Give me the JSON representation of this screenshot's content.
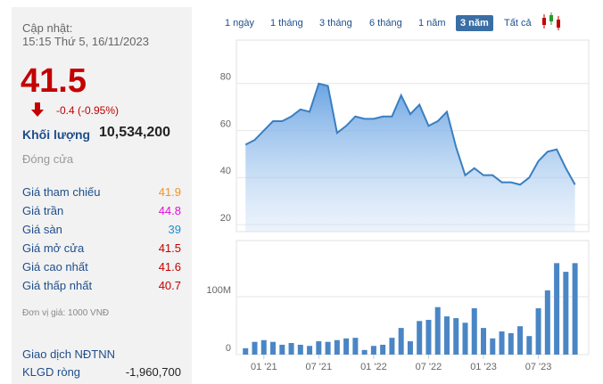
{
  "panel": {
    "updated_label": "Cập nhật:",
    "updated_time": "15:15 Thứ 5, 16/11/2023",
    "price": "41.5",
    "change": "-0.4 (-0.95%)",
    "volume_label": "Khối lượng",
    "volume": "10,534,200",
    "close_label": "Đóng cửa",
    "rows": [
      {
        "label": "Giá tham chiếu",
        "value": "41.9",
        "color": "#f0932b"
      },
      {
        "label": "Giá trần",
        "value": "44.8",
        "color": "#e011d8"
      },
      {
        "label": "Giá sàn",
        "value": "39",
        "color": "#1a8fc9"
      },
      {
        "label": "Giá mở cửa",
        "value": "41.5",
        "color": "#c40000"
      },
      {
        "label": "Giá cao nhất",
        "value": "41.6",
        "color": "#c40000"
      },
      {
        "label": "Giá thấp nhất",
        "value": "40.7",
        "color": "#c40000"
      }
    ],
    "unit_note": "Đơn vị giá: 1000 VNĐ",
    "foreign_title": "Giao dịch NĐTNN",
    "net_label": "KLGD ròng",
    "net_value": "-1,960,700"
  },
  "tabs": {
    "items": [
      "1 ngày",
      "1 tháng",
      "3 tháng",
      "6 tháng",
      "1 năm",
      "3 năm",
      "Tất cả"
    ],
    "active": 5
  },
  "chart_data": [
    {
      "type": "area",
      "color": "#3a7fc0",
      "grid": true,
      "x": [
        0,
        1,
        2,
        3,
        4,
        5,
        6,
        7,
        8,
        9,
        10,
        11,
        12,
        13,
        14,
        15,
        16,
        17,
        18,
        19,
        20,
        21,
        22,
        23,
        24,
        25,
        26,
        27,
        28,
        29,
        30,
        31,
        32,
        33,
        34,
        35,
        36
      ],
      "values": [
        54,
        56,
        60,
        64,
        64,
        66,
        69,
        68,
        80,
        79,
        59,
        62,
        66,
        65,
        65,
        66,
        66,
        75,
        67,
        71,
        62,
        64,
        68,
        53,
        41,
        44,
        41,
        41,
        38,
        38,
        37,
        40,
        47,
        51,
        52,
        44,
        37
      ],
      "xlim": [
        -1,
        37.5
      ],
      "ylim": [
        17,
        98.5
      ],
      "yticks": [
        20,
        40,
        60,
        80
      ]
    },
    {
      "type": "bar",
      "color": "#4a86c5",
      "grid": true,
      "x": [
        0,
        1,
        2,
        3,
        4,
        5,
        6,
        7,
        8,
        9,
        10,
        11,
        12,
        13,
        14,
        15,
        16,
        17,
        18,
        19,
        20,
        21,
        22,
        23,
        24,
        25,
        26,
        27,
        28,
        29,
        30,
        31,
        32,
        33,
        34,
        35,
        36
      ],
      "values": [
        11000000,
        22000000,
        25000000,
        22000000,
        17000000,
        20000000,
        17000000,
        15000000,
        23000000,
        22000000,
        25000000,
        28000000,
        29000000,
        8000000,
        15000000,
        17000000,
        29000000,
        46000000,
        23000000,
        58000000,
        60000000,
        82000000,
        66000000,
        63000000,
        55000000,
        80000000,
        46000000,
        28000000,
        40000000,
        37000000,
        49000000,
        32000000,
        80000000,
        111000000,
        158000000,
        143000000,
        158000000
      ],
      "xlim": [
        -1,
        37.5
      ],
      "ylim": [
        0,
        197000000
      ],
      "yticks": [
        {
          "value": 0,
          "label": "0"
        },
        {
          "value": 100000000,
          "label": "100M"
        }
      ],
      "xticks": [
        {
          "value": 2,
          "label": "01 '21"
        },
        {
          "value": 8,
          "label": "07 '21"
        },
        {
          "value": 14,
          "label": "01 '22"
        },
        {
          "value": 20,
          "label": "07 '22"
        },
        {
          "value": 26,
          "label": "01 '23"
        },
        {
          "value": 32,
          "label": "07 '23"
        }
      ]
    }
  ]
}
